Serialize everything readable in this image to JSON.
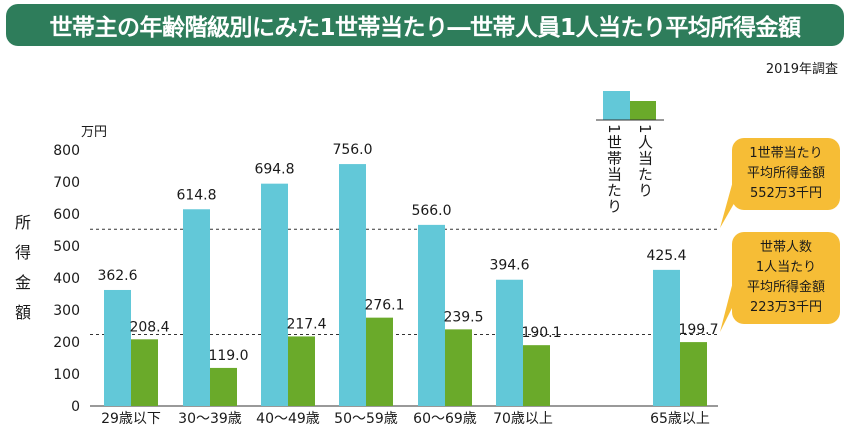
{
  "title": "世帯主の年齢階級別にみた1世帯当たり―世帯人員1人当たり平均所得金額",
  "survey_year": "2019年調査",
  "unit": "万円",
  "ylabel_chars": [
    "所",
    "得",
    "金",
    "額"
  ],
  "legend": {
    "household": {
      "label": "1世帯当たり",
      "color": "#62c8d8"
    },
    "per_person": {
      "label": "1人当たり",
      "color": "#6aaa2a"
    }
  },
  "callouts": {
    "household": [
      "1世帯当たり",
      "平均所得金額",
      "552万3千円"
    ],
    "per_person": [
      "世帯人数",
      "1人当たり",
      "平均所得金額",
      "223万3千円"
    ]
  },
  "chart_data": {
    "type": "bar",
    "categories": [
      "29歳以下",
      "30～39歳",
      "40～49歳",
      "50～59歳",
      "60～69歳",
      "70歳以上",
      "65歳以上"
    ],
    "series": [
      {
        "name": "1世帯当たり",
        "values": [
          362.6,
          614.8,
          694.8,
          756.0,
          566.0,
          394.6,
          425.4
        ],
        "labels": [
          "362.6",
          "614.8",
          "694.8",
          "756.0",
          "566.0",
          "394.6",
          "425.4"
        ]
      },
      {
        "name": "1人当たり",
        "values": [
          208.4,
          119.0,
          217.4,
          276.1,
          239.5,
          190.1,
          199.7
        ],
        "labels": [
          "208.4",
          "119.0",
          "217.4",
          "276.1",
          "239.5",
          "190.1",
          "199.7"
        ]
      }
    ],
    "reference_lines": [
      552.3,
      223.3
    ],
    "ylim": [
      0,
      800
    ],
    "yticks": [
      "0",
      "100",
      "200",
      "300",
      "400",
      "500",
      "600",
      "700",
      "800"
    ],
    "ylabel": "所得金額",
    "title": "世帯主の年齢階級別にみた1世帯当たり―世帯人員1人当たり平均所得金額"
  }
}
